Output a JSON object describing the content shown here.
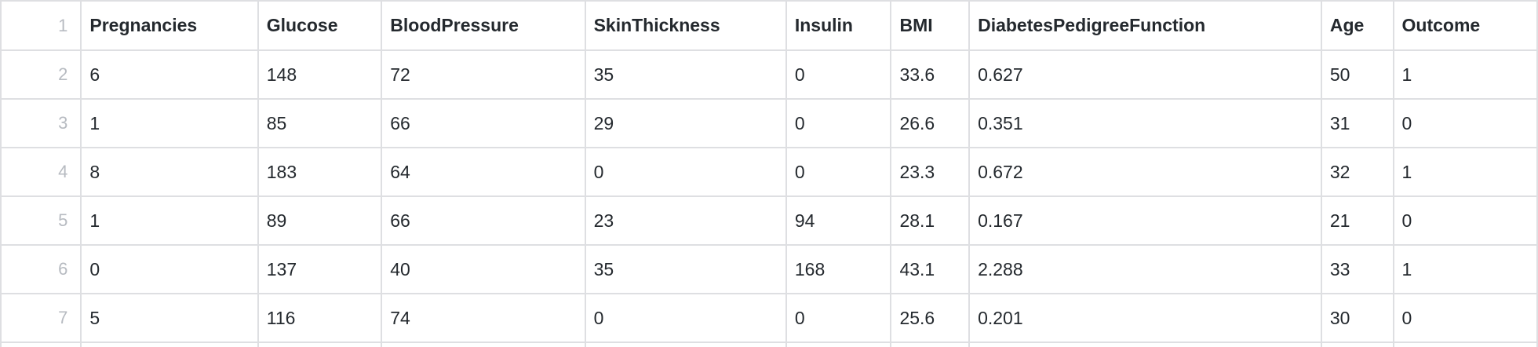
{
  "headers": [
    "Pregnancies",
    "Glucose",
    "BloodPressure",
    "SkinThickness",
    "Insulin",
    "BMI",
    "DiabetesPedigreeFunction",
    "Age",
    "Outcome"
  ],
  "row_numbers": [
    "1",
    "2",
    "3",
    "4",
    "5",
    "6",
    "7"
  ],
  "rows": [
    [
      "6",
      "148",
      "72",
      "35",
      "0",
      "33.6",
      "0.627",
      "50",
      "1"
    ],
    [
      "1",
      "85",
      "66",
      "29",
      "0",
      "26.6",
      "0.351",
      "31",
      "0"
    ],
    [
      "8",
      "183",
      "64",
      "0",
      "0",
      "23.3",
      "0.672",
      "32",
      "1"
    ],
    [
      "1",
      "89",
      "66",
      "23",
      "94",
      "28.1",
      "0.167",
      "21",
      "0"
    ],
    [
      "0",
      "137",
      "40",
      "35",
      "168",
      "43.1",
      "2.288",
      "33",
      "1"
    ],
    [
      "5",
      "116",
      "74",
      "0",
      "0",
      "25.6",
      "0.201",
      "30",
      "0"
    ]
  ]
}
